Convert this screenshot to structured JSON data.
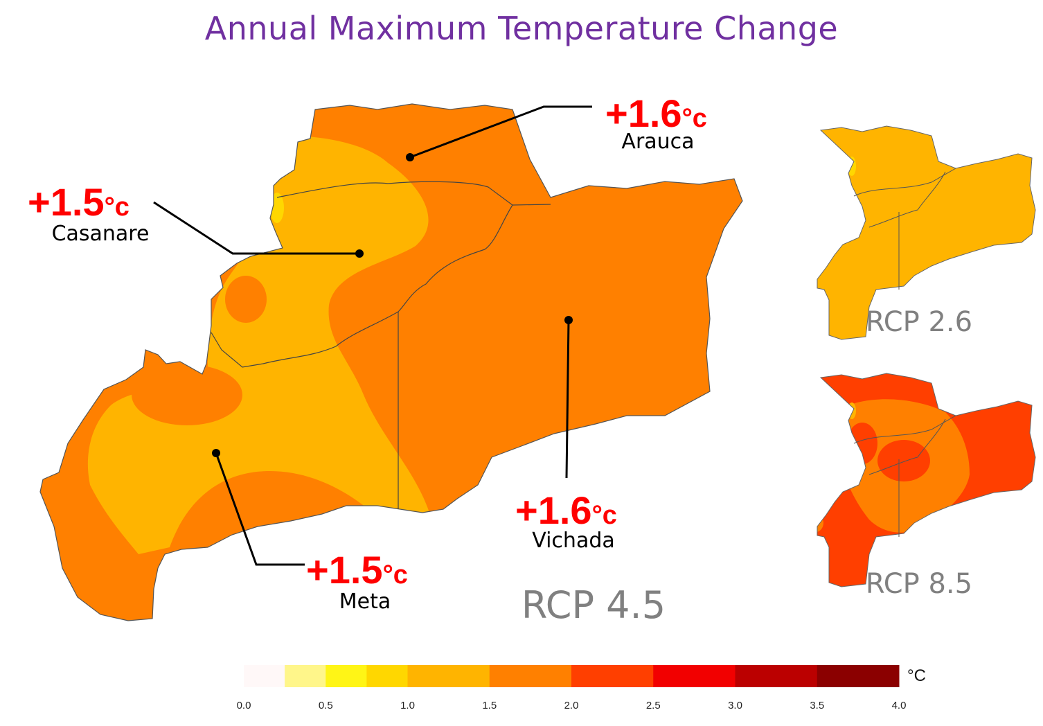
{
  "title": "Annual Maximum Temperature Change",
  "main_scenario": "RCP 4.5",
  "insets": [
    {
      "label": "RCP 2.6"
    },
    {
      "label": "RCP 8.5"
    }
  ],
  "regions": [
    {
      "name": "Arauca",
      "value": "+1.6",
      "unit": "°c"
    },
    {
      "name": "Casanare",
      "value": "+1.5",
      "unit": "°c"
    },
    {
      "name": "Vichada",
      "value": "+1.6",
      "unit": "°c"
    },
    {
      "name": "Meta",
      "value": "+1.5",
      "unit": "°c"
    }
  ],
  "colorbar": {
    "unit": "°C",
    "ticks": [
      "0.0",
      "0.5",
      "1.0",
      "1.5",
      "2.0",
      "2.5",
      "3.0",
      "3.5",
      "4.0"
    ],
    "colors": [
      "#fff8f8",
      "#fff68a",
      "#fff516",
      "#ffd700",
      "#ffb400",
      "#ff8000",
      "#ff3f00",
      "#f20000",
      "#bb0000",
      "#8b0000"
    ],
    "bins": [
      0.0,
      0.25,
      0.5,
      0.75,
      1.0,
      1.5,
      2.0,
      2.5,
      3.0,
      3.5,
      4.0
    ]
  },
  "colors": {
    "title": "#7030a0",
    "value_text": "#ff0000",
    "scenario_text": "#808080"
  }
}
